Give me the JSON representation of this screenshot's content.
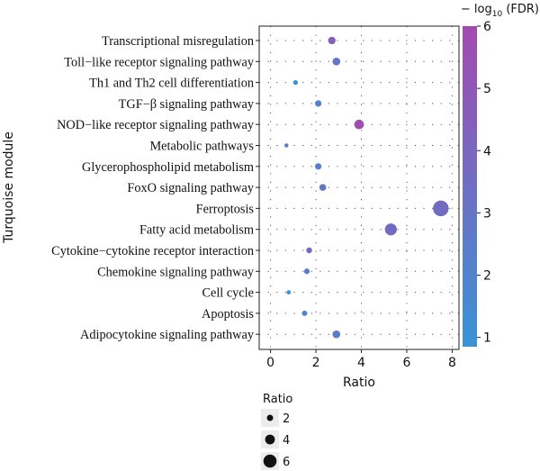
{
  "chart_data": {
    "type": "scatter",
    "ylabel": "Turquoise module",
    "xlabel": "Ratio",
    "xlim": [
      -0.5,
      8.3
    ],
    "xticks": [
      0,
      2,
      4,
      6,
      8
    ],
    "grid": true,
    "categories": [
      "Transcriptional misregulation",
      "Toll−like receptor signaling pathway",
      "Th1 and Th2 cell differentiation",
      "TGF−β signaling pathway",
      "NOD−like receptor signaling pathway",
      "Metabolic pathways",
      "Glycerophospholipid metabolism",
      "FoxO signaling pathway",
      "Ferroptosis",
      "Fatty acid metabolism",
      "Cytokine−cytokine receptor interaction",
      "Chemokine signaling pathway",
      "Cell cycle",
      "Apoptosis",
      "Adipocytokine signaling pathway"
    ],
    "points": [
      {
        "category": "Transcriptional misregulation",
        "ratio": 2.7,
        "neg_log10_fdr": 4.3
      },
      {
        "category": "Toll−like receptor signaling pathway",
        "ratio": 2.9,
        "neg_log10_fdr": 3.0
      },
      {
        "category": "Th1 and Th2 cell differentiation",
        "ratio": 1.1,
        "neg_log10_fdr": 1.0
      },
      {
        "category": "TGF−β signaling pathway",
        "ratio": 2.1,
        "neg_log10_fdr": 2.0
      },
      {
        "category": "NOD−like receptor signaling pathway",
        "ratio": 3.9,
        "neg_log10_fdr": 5.8
      },
      {
        "category": "Metabolic pathways",
        "ratio": 0.7,
        "neg_log10_fdr": 2.6
      },
      {
        "category": "Glycerophospholipid metabolism",
        "ratio": 2.1,
        "neg_log10_fdr": 2.2
      },
      {
        "category": "FoxO signaling pathway",
        "ratio": 2.3,
        "neg_log10_fdr": 2.8
      },
      {
        "category": "Ferroptosis",
        "ratio": 7.5,
        "neg_log10_fdr": 3.6
      },
      {
        "category": "Fatty acid metabolism",
        "ratio": 5.3,
        "neg_log10_fdr": 3.6
      },
      {
        "category": "Cytokine−cytokine receptor interaction",
        "ratio": 1.7,
        "neg_log10_fdr": 3.7
      },
      {
        "category": "Chemokine signaling pathway",
        "ratio": 1.6,
        "neg_log10_fdr": 2.2
      },
      {
        "category": "Cell cycle",
        "ratio": 0.8,
        "neg_log10_fdr": 1.0
      },
      {
        "category": "Apoptosis",
        "ratio": 1.5,
        "neg_log10_fdr": 1.8
      },
      {
        "category": "Adipocytokine signaling pathway",
        "ratio": 2.9,
        "neg_log10_fdr": 2.4
      }
    ],
    "color_legend": {
      "title_prefix": "− log",
      "title_sub": "10",
      "title_suffix": " (FDR)",
      "ticks": [
        1,
        2,
        3,
        4,
        5,
        6
      ],
      "min": 0.85,
      "max": 6.0,
      "low_color": "#3A93D5",
      "high_color": "#A34AAF"
    },
    "size_legend": {
      "title": "Ratio",
      "values": [
        2,
        4,
        6
      ]
    }
  }
}
